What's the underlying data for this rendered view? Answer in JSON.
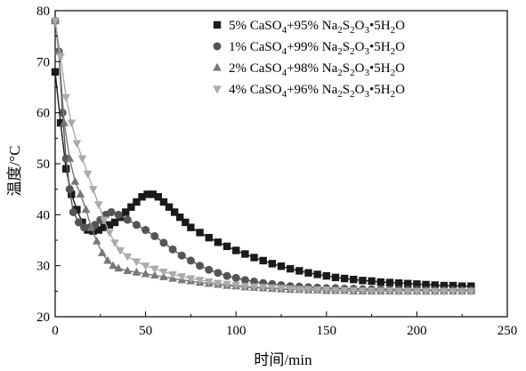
{
  "chart_data": {
    "type": "line",
    "xlabel": "时间/min",
    "ylabel": "温度/°C",
    "xlim": [
      0,
      250
    ],
    "ylim": [
      20,
      80
    ],
    "xticks": [
      0,
      50,
      100,
      150,
      200,
      250
    ],
    "yticks": [
      20,
      30,
      40,
      50,
      60,
      70,
      80
    ],
    "grid": false,
    "legend_position": "top-right",
    "series": [
      {
        "legend": {
          "pre": "5% CaSO",
          "s1": "4",
          "mid": "+95% Na",
          "s2": "2",
          "s3": "S",
          "s4": "2",
          "s5": "O",
          "s6": "3",
          "s7": "•5H",
          "s8": "2",
          "s9": "O"
        },
        "color": "#1a1a1a",
        "marker": "square",
        "x": [
          0,
          3,
          6,
          9,
          12,
          15,
          18,
          21,
          24,
          27,
          30,
          33,
          36,
          39,
          42,
          45,
          48,
          51,
          54,
          57,
          60,
          63,
          66,
          69,
          72,
          75,
          80,
          85,
          90,
          95,
          100,
          105,
          110,
          115,
          120,
          125,
          130,
          135,
          140,
          145,
          150,
          155,
          160,
          165,
          170,
          175,
          180,
          185,
          190,
          195,
          200,
          205,
          210,
          215,
          220,
          225,
          230
        ],
        "y": [
          68,
          58,
          49,
          44,
          41,
          38.5,
          37,
          36.8,
          37,
          37.5,
          38,
          38.5,
          39.5,
          40.5,
          41.5,
          42.5,
          43.5,
          44,
          44,
          43.5,
          42.5,
          41.5,
          40.5,
          39.5,
          38.5,
          37.5,
          36.5,
          35.5,
          34.6,
          33.8,
          33,
          32.3,
          31.6,
          31,
          30.4,
          29.9,
          29.4,
          29,
          28.6,
          28.3,
          28,
          27.7,
          27.5,
          27.3,
          27.1,
          27,
          26.8,
          26.7,
          26.6,
          26.5,
          26.4,
          26.3,
          26.2,
          26.1,
          26.1,
          26,
          26
        ]
      },
      {
        "legend": {
          "pre": "1% CaSO",
          "s1": "4",
          "mid": "+99% Na",
          "s2": "2",
          "s3": "S",
          "s4": "2",
          "s5": "O",
          "s6": "3",
          "s7": "•5H",
          "s8": "2",
          "s9": "O"
        },
        "color": "#555555",
        "marker": "circle",
        "x": [
          0,
          2,
          4,
          6,
          8,
          10,
          13,
          16,
          19,
          22,
          25,
          28,
          31,
          35,
          40,
          45,
          50,
          55,
          60,
          65,
          70,
          75,
          80,
          85,
          90,
          95,
          100,
          105,
          110,
          115,
          120,
          125,
          130,
          135,
          140,
          145,
          150,
          155,
          160,
          165,
          170,
          175,
          180,
          185,
          190,
          195,
          200,
          205,
          210,
          215,
          220,
          225,
          230
        ],
        "y": [
          78,
          72,
          60,
          51,
          45,
          40.5,
          38.5,
          37.5,
          37.5,
          38,
          39,
          40,
          40.5,
          40,
          39,
          38,
          37,
          35.8,
          34.5,
          33.2,
          32,
          31,
          30,
          29.2,
          28.6,
          28,
          27.6,
          27.2,
          26.9,
          26.6,
          26.4,
          26.2,
          26,
          25.9,
          25.8,
          25.7,
          25.6,
          25.6,
          25.5,
          25.5,
          25.4,
          25.4,
          25.4,
          25.3,
          25.3,
          25.3,
          25.3,
          25.2,
          25.2,
          25.2,
          25.2,
          25.2,
          25.2
        ]
      },
      {
        "legend": {
          "pre": "2% CaSO",
          "s1": "4",
          "mid": "+98% Na",
          "s2": "2",
          "s3": "S",
          "s4": "2",
          "s5": "O",
          "s6": "3",
          "s7": "•5H",
          "s8": "2",
          "s9": "O"
        },
        "color": "#777777",
        "marker": "triangle-up",
        "x": [
          0,
          2,
          5,
          8,
          11,
          14,
          17,
          20,
          23,
          26,
          29,
          32,
          35,
          40,
          45,
          50,
          55,
          60,
          65,
          70,
          75,
          80,
          85,
          90,
          95,
          100,
          105,
          110,
          115,
          120,
          125,
          130,
          135,
          140,
          145,
          150,
          155,
          160,
          165,
          170,
          175,
          180,
          185,
          190,
          195,
          200,
          205,
          210,
          215,
          220,
          225,
          230
        ],
        "y": [
          78,
          72,
          58,
          51,
          46.5,
          44,
          41,
          37.5,
          34.8,
          32.5,
          31,
          30,
          29.5,
          29,
          28.7,
          28.4,
          28.1,
          27.8,
          27.5,
          27.2,
          27,
          26.7,
          26.5,
          26.3,
          26.1,
          26,
          25.8,
          25.7,
          25.6,
          25.5,
          25.4,
          25.3,
          25.3,
          25.2,
          25.2,
          25.1,
          25.1,
          25.1,
          25,
          25,
          25,
          25,
          25,
          25,
          25,
          25,
          25,
          25,
          25,
          25,
          25,
          25
        ]
      },
      {
        "legend": {
          "pre": "4% CaSO",
          "s1": "4",
          "mid": "+96% Na",
          "s2": "2",
          "s3": "S",
          "s4": "2",
          "s5": "O",
          "s6": "3",
          "s7": "•5H",
          "s8": "2",
          "s9": "O"
        },
        "color": "#aaaaaa",
        "marker": "triangle-down",
        "x": [
          0,
          3,
          6,
          9,
          12,
          15,
          18,
          21,
          24,
          27,
          30,
          33,
          36,
          40,
          45,
          50,
          55,
          60,
          65,
          70,
          75,
          80,
          85,
          90,
          95,
          100,
          105,
          110,
          115,
          120,
          125,
          130,
          135,
          140,
          145,
          150,
          155,
          160,
          165,
          170,
          175,
          180,
          185,
          190,
          195,
          200,
          205,
          210,
          215,
          220,
          225,
          230
        ],
        "y": [
          78,
          71,
          63,
          58,
          54,
          51,
          48,
          45,
          42,
          39,
          36.5,
          34.5,
          33,
          31.8,
          30.8,
          30,
          29.4,
          28.8,
          28.3,
          27.9,
          27.5,
          27.2,
          26.9,
          26.6,
          26.4,
          26.2,
          26,
          25.9,
          25.8,
          25.7,
          25.6,
          25.5,
          25.4,
          25.4,
          25.3,
          25.3,
          25.2,
          25.2,
          25.2,
          25.1,
          25.1,
          25.1,
          25.1,
          25,
          25,
          25,
          25,
          25,
          25,
          25,
          25,
          25
        ]
      }
    ]
  }
}
